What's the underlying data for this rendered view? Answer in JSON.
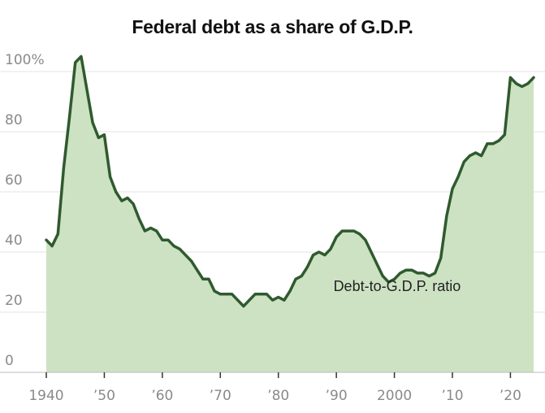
{
  "chart_data": {
    "type": "area",
    "title": "Federal debt as a share of G.D.P.",
    "annotation": "Debt-to-G.D.P. ratio",
    "ylim": [
      0,
      100
    ],
    "xlim": [
      1940,
      2024
    ],
    "y_ticks": [
      {
        "value": 100,
        "label": "100%"
      },
      {
        "value": 80,
        "label": "80"
      },
      {
        "value": 60,
        "label": "60"
      },
      {
        "value": 40,
        "label": "40"
      },
      {
        "value": 20,
        "label": "20"
      },
      {
        "value": 0,
        "label": "0"
      }
    ],
    "x_ticks": [
      {
        "value": 1940,
        "label": "1940"
      },
      {
        "value": 1950,
        "label": "’50"
      },
      {
        "value": 1960,
        "label": "’60"
      },
      {
        "value": 1970,
        "label": "’70"
      },
      {
        "value": 1980,
        "label": "’80"
      },
      {
        "value": 1990,
        "label": "’90"
      },
      {
        "value": 2000,
        "label": "2000"
      },
      {
        "value": 2010,
        "label": "’10"
      },
      {
        "value": 2020,
        "label": "’20"
      }
    ],
    "grid": true,
    "colors": {
      "line": "#2f5a2e",
      "fill": "#cde2c3",
      "grid": "#e3e3e3",
      "axis": "#333333"
    },
    "x": [
      1940,
      1941,
      1942,
      1943,
      1944,
      1945,
      1946,
      1947,
      1948,
      1949,
      1950,
      1951,
      1952,
      1953,
      1954,
      1955,
      1956,
      1957,
      1958,
      1959,
      1960,
      1961,
      1962,
      1963,
      1964,
      1965,
      1966,
      1967,
      1968,
      1969,
      1970,
      1971,
      1972,
      1973,
      1974,
      1975,
      1976,
      1977,
      1978,
      1979,
      1980,
      1981,
      1982,
      1983,
      1984,
      1985,
      1986,
      1987,
      1988,
      1989,
      1990,
      1991,
      1992,
      1993,
      1994,
      1995,
      1996,
      1997,
      1998,
      1999,
      2000,
      2001,
      2002,
      2003,
      2004,
      2005,
      2006,
      2007,
      2008,
      2009,
      2010,
      2011,
      2012,
      2013,
      2014,
      2015,
      2016,
      2017,
      2018,
      2019,
      2020,
      2021,
      2022,
      2023,
      2024
    ],
    "values": [
      44,
      42,
      46,
      68,
      85,
      103,
      105,
      94,
      83,
      78,
      79,
      65,
      60,
      57,
      58,
      56,
      51,
      47,
      48,
      47,
      44,
      44,
      42,
      41,
      39,
      37,
      34,
      31,
      31,
      27,
      26,
      26,
      26,
      24,
      22,
      24,
      26,
      26,
      26,
      24,
      25,
      24,
      27,
      31,
      32,
      35,
      39,
      40,
      39,
      41,
      45,
      47,
      47,
      47,
      46,
      44,
      40,
      36,
      32,
      30,
      31,
      33,
      34,
      34,
      33,
      33,
      32,
      33,
      38,
      52,
      61,
      65,
      70,
      72,
      73,
      72,
      76,
      76,
      77,
      79,
      98,
      96,
      95,
      96,
      98
    ]
  }
}
